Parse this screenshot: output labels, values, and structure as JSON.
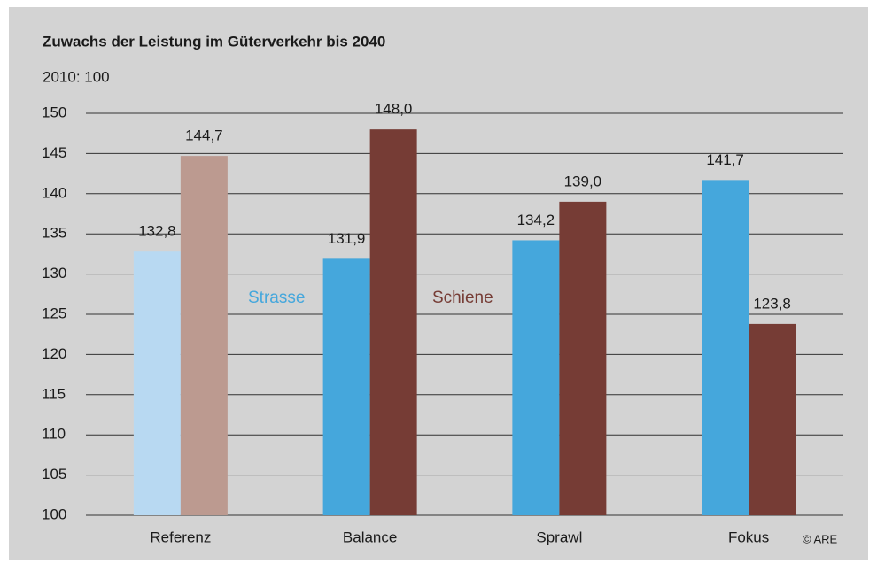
{
  "chart_data": {
    "type": "bar",
    "title": "Zuwachs der Leistung im Güterverkehr bis 2040",
    "subtitle": "2010: 100",
    "source": "© ARE",
    "categories": [
      "Referenz",
      "Balance",
      "Sprawl",
      "Fokus"
    ],
    "series": [
      {
        "name": "Strasse",
        "color": "#45a7dc",
        "colors": [
          "#b8d9f2",
          "#45a7dc",
          "#45a7dc",
          "#45a7dc"
        ],
        "values": [
          132.8,
          131.9,
          134.2,
          141.7
        ],
        "value_labels": [
          "132,8",
          "131,9",
          "134,2",
          "141,7"
        ]
      },
      {
        "name": "Schiene",
        "color": "#763c35",
        "colors": [
          "#bc9a90",
          "#763c35",
          "#763c35",
          "#763c35"
        ],
        "values": [
          144.7,
          148.0,
          139.0,
          123.8
        ],
        "value_labels": [
          "144,7",
          "148,0",
          "139,0",
          "123,8"
        ]
      }
    ],
    "ylim": [
      100,
      150
    ],
    "yticks": [
      100,
      105,
      110,
      115,
      120,
      125,
      130,
      135,
      140,
      145,
      150
    ],
    "grid": true
  }
}
